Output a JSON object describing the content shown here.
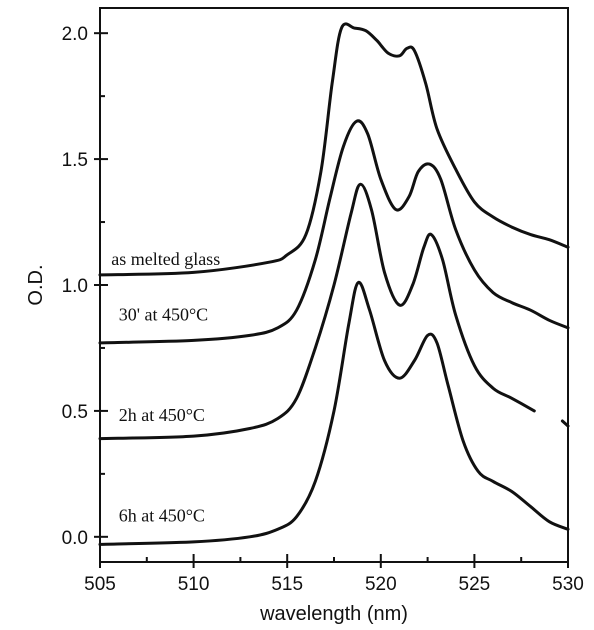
{
  "chart_data": {
    "type": "line",
    "title": "",
    "xlabel": "wavelength (nm)",
    "ylabel": "O.D.",
    "xlim": [
      505,
      530
    ],
    "ylim": [
      -0.1,
      2.1
    ],
    "xticks": [
      "505",
      "510",
      "515",
      "520",
      "525",
      "530"
    ],
    "yticks": [
      "0.0",
      "0.5",
      "1.0",
      "1.5",
      "2.0"
    ],
    "grid": false,
    "legend": "none",
    "series": [
      {
        "name": "as melted glass",
        "label_at": [
          505.6,
          1.08
        ],
        "points": [
          [
            505,
            1.04
          ],
          [
            510,
            1.05
          ],
          [
            514,
            1.09
          ],
          [
            515,
            1.12
          ],
          [
            516,
            1.2
          ],
          [
            516.8,
            1.45
          ],
          [
            517.4,
            1.8
          ],
          [
            517.9,
            2.02
          ],
          [
            518.6,
            2.02
          ],
          [
            519.2,
            2.01
          ],
          [
            519.8,
            1.97
          ],
          [
            520.4,
            1.92
          ],
          [
            521.0,
            1.91
          ],
          [
            521.4,
            1.94
          ],
          [
            521.8,
            1.93
          ],
          [
            522.4,
            1.8
          ],
          [
            523.0,
            1.62
          ],
          [
            524.0,
            1.46
          ],
          [
            525.0,
            1.33
          ],
          [
            526.0,
            1.27
          ],
          [
            527.0,
            1.23
          ],
          [
            528.0,
            1.2
          ],
          [
            529.0,
            1.18
          ],
          [
            530.0,
            1.15
          ]
        ]
      },
      {
        "name": "30' at 450°C",
        "label_at": [
          506.0,
          0.86
        ],
        "points": [
          [
            505,
            0.77
          ],
          [
            510,
            0.78
          ],
          [
            513,
            0.8
          ],
          [
            514.5,
            0.83
          ],
          [
            515.5,
            0.9
          ],
          [
            516.5,
            1.1
          ],
          [
            517.3,
            1.35
          ],
          [
            518.0,
            1.55
          ],
          [
            518.7,
            1.65
          ],
          [
            519.3,
            1.6
          ],
          [
            520.0,
            1.42
          ],
          [
            520.8,
            1.3
          ],
          [
            521.5,
            1.35
          ],
          [
            522.0,
            1.45
          ],
          [
            522.6,
            1.48
          ],
          [
            523.2,
            1.42
          ],
          [
            524.0,
            1.22
          ],
          [
            525.0,
            1.06
          ],
          [
            526.0,
            0.97
          ],
          [
            527.0,
            0.93
          ],
          [
            528.0,
            0.9
          ],
          [
            529.0,
            0.86
          ],
          [
            530.0,
            0.83
          ]
        ]
      },
      {
        "name": "2h at 450°C",
        "label_at": [
          506.0,
          0.46
        ],
        "points": [
          [
            505,
            0.39
          ],
          [
            510,
            0.4
          ],
          [
            513,
            0.43
          ],
          [
            514.5,
            0.47
          ],
          [
            515.5,
            0.55
          ],
          [
            516.5,
            0.75
          ],
          [
            517.5,
            1.0
          ],
          [
            518.4,
            1.28
          ],
          [
            518.9,
            1.4
          ],
          [
            519.5,
            1.3
          ],
          [
            520.2,
            1.05
          ],
          [
            521.0,
            0.92
          ],
          [
            521.7,
            1.0
          ],
          [
            522.3,
            1.15
          ],
          [
            522.7,
            1.2
          ],
          [
            523.3,
            1.1
          ],
          [
            524.0,
            0.88
          ],
          [
            525.0,
            0.68
          ],
          [
            526.0,
            0.59
          ],
          [
            527.0,
            0.55
          ],
          [
            528.2,
            0.5
          ]
        ],
        "trailing_segment": [
          [
            529.7,
            0.46
          ],
          [
            530.0,
            0.44
          ]
        ]
      },
      {
        "name": "6h at 450°C",
        "label_at": [
          506.0,
          0.06
        ],
        "points": [
          [
            505,
            -0.03
          ],
          [
            510,
            -0.02
          ],
          [
            513,
            0.0
          ],
          [
            514.5,
            0.03
          ],
          [
            515.5,
            0.08
          ],
          [
            516.5,
            0.22
          ],
          [
            517.5,
            0.5
          ],
          [
            518.3,
            0.85
          ],
          [
            518.8,
            1.01
          ],
          [
            519.4,
            0.9
          ],
          [
            520.2,
            0.7
          ],
          [
            521.0,
            0.63
          ],
          [
            521.8,
            0.7
          ],
          [
            522.5,
            0.8
          ],
          [
            523.0,
            0.77
          ],
          [
            523.6,
            0.6
          ],
          [
            524.4,
            0.38
          ],
          [
            525.2,
            0.26
          ],
          [
            526.0,
            0.22
          ],
          [
            527.0,
            0.18
          ],
          [
            528.0,
            0.12
          ],
          [
            529.0,
            0.06
          ],
          [
            530.0,
            0.03
          ]
        ]
      }
    ]
  }
}
